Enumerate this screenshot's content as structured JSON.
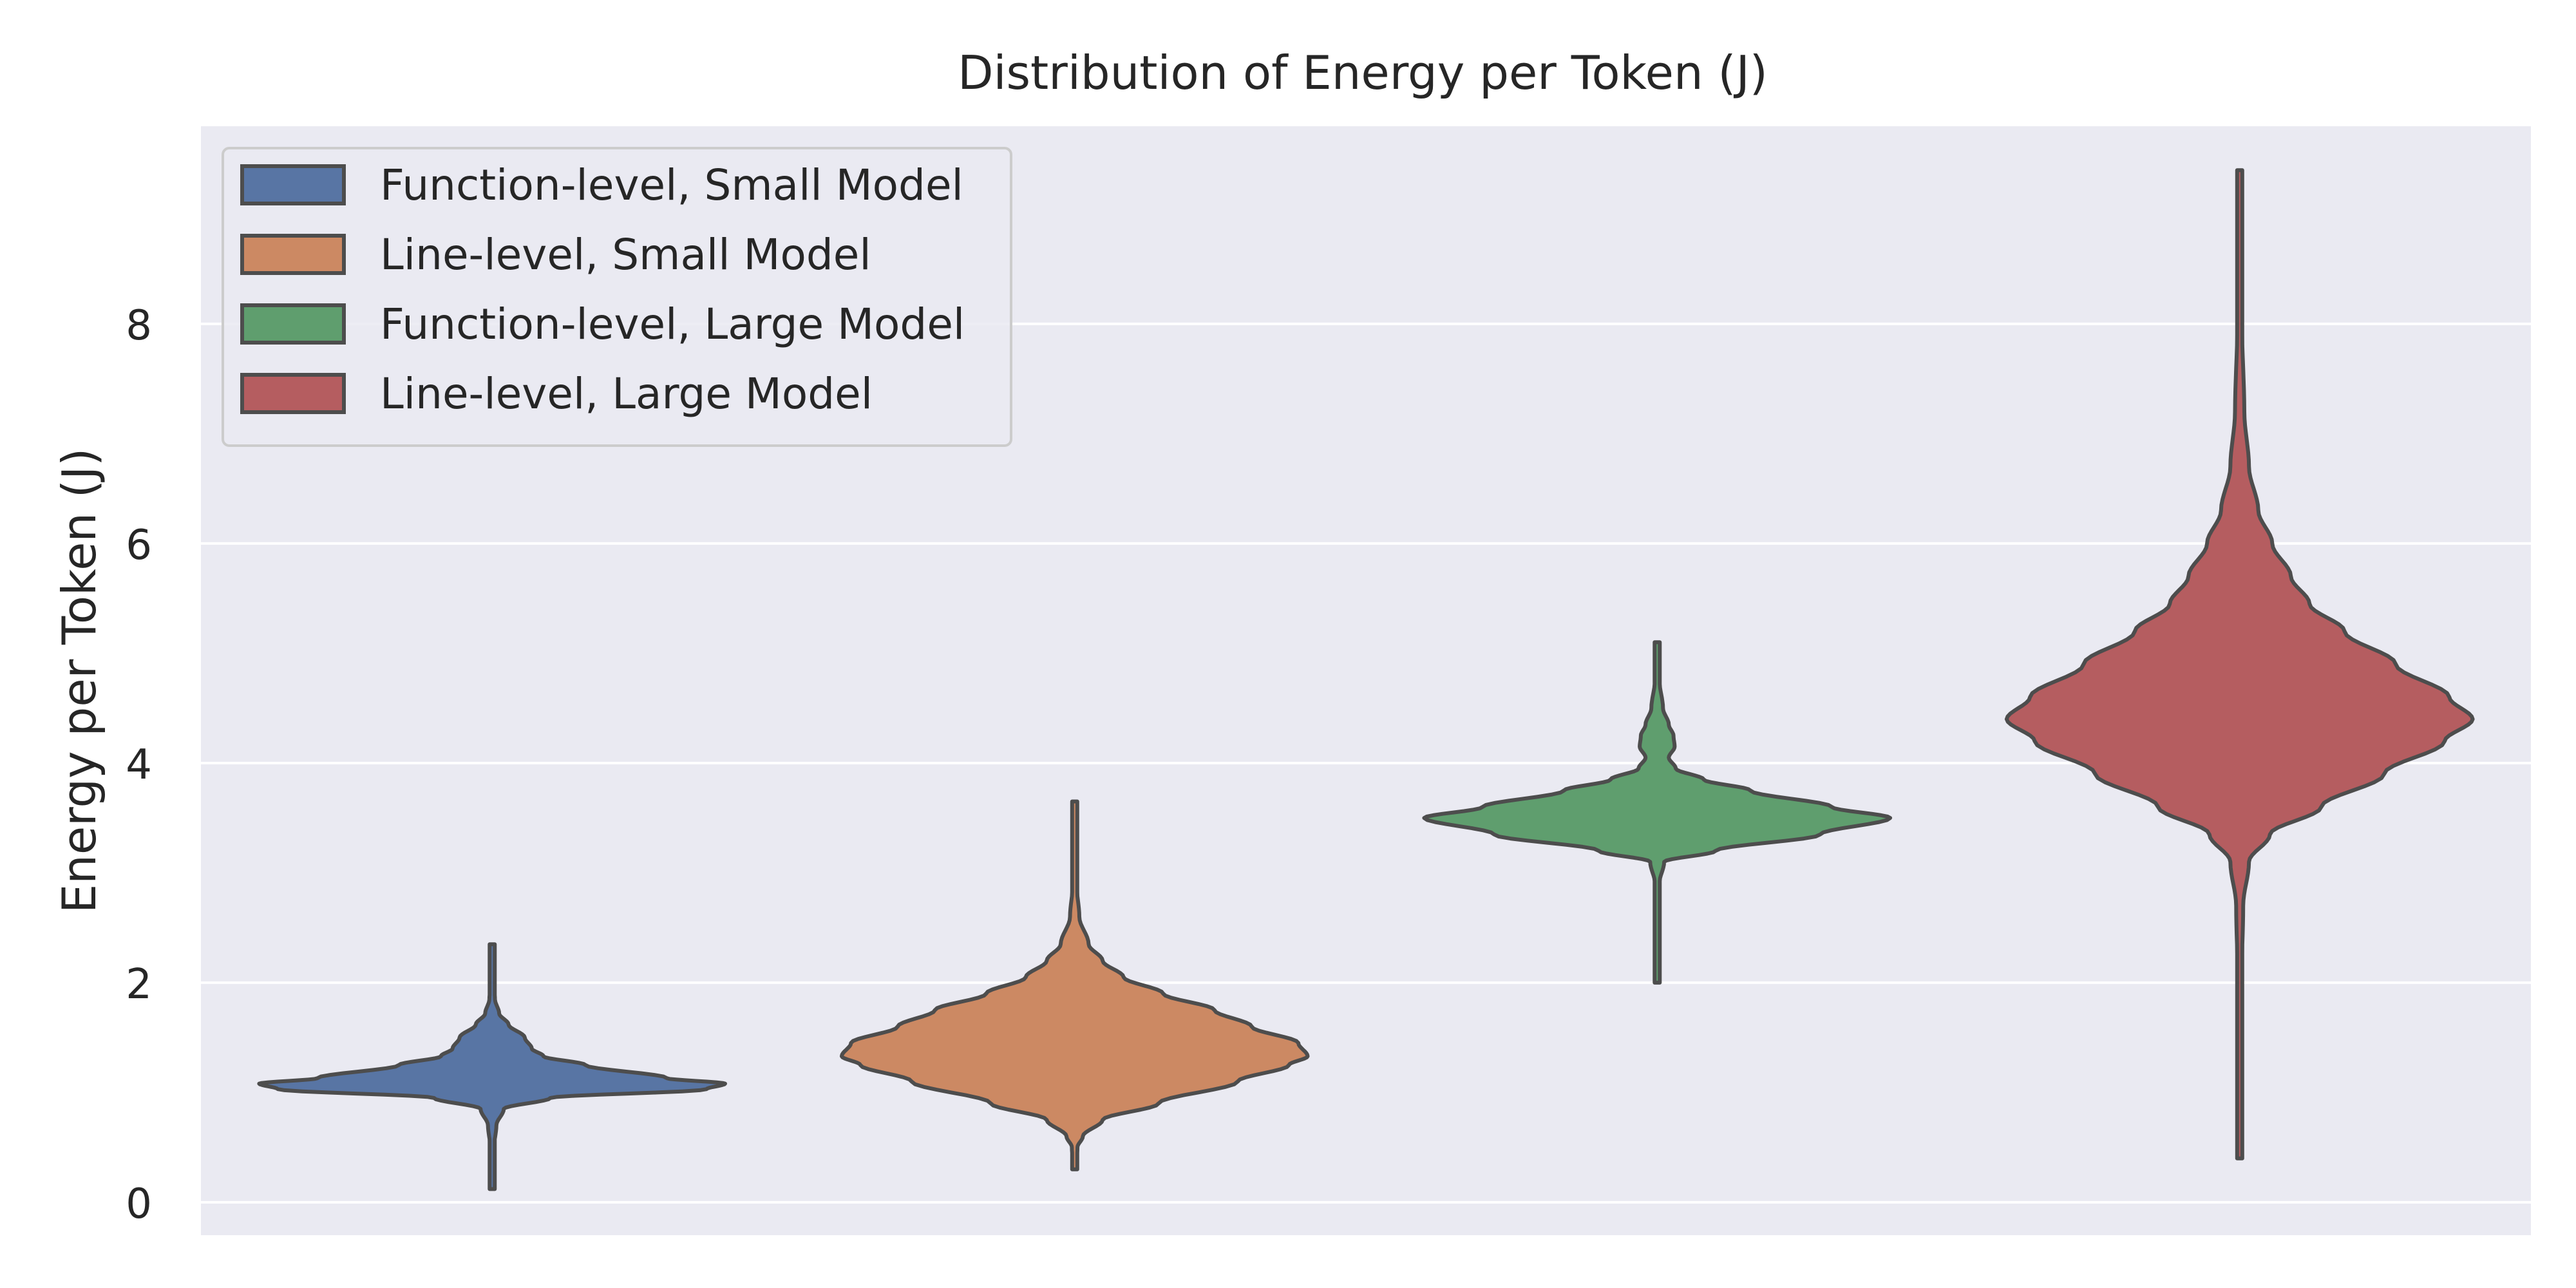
{
  "chart_data": {
    "type": "violin",
    "title": "Distribution of Energy per Token (J)",
    "xlabel": "",
    "ylabel": "Energy per Token (J)",
    "ylim": [
      -0.3,
      9.8
    ],
    "yticks": [
      0,
      2,
      4,
      6,
      8
    ],
    "grid": true,
    "legend_placement": "top-left",
    "background": "#eaeaf2",
    "outline_color": "#4d4d4d",
    "series": [
      {
        "name": "Function-level, Small Model",
        "color": "#5875a4",
        "range": [
          0.12,
          2.35
        ],
        "profile": [
          [
            0.12,
            0.003
          ],
          [
            0.3,
            0.006
          ],
          [
            0.5,
            0.008
          ],
          [
            0.7,
            0.018
          ],
          [
            0.85,
            0.05
          ],
          [
            0.95,
            0.25
          ],
          [
            1.03,
            0.92
          ],
          [
            1.08,
            1.0
          ],
          [
            1.13,
            0.75
          ],
          [
            1.25,
            0.4
          ],
          [
            1.33,
            0.22
          ],
          [
            1.4,
            0.17
          ],
          [
            1.5,
            0.14
          ],
          [
            1.62,
            0.07
          ],
          [
            1.72,
            0.03
          ],
          [
            1.85,
            0.012
          ],
          [
            2.0,
            0.004
          ],
          [
            2.35,
            0.002
          ]
        ]
      },
      {
        "name": "Line-level, Small Model",
        "color": "#cc8963",
        "range": [
          0.3,
          3.65
        ],
        "profile": [
          [
            0.3,
            0.004
          ],
          [
            0.5,
            0.012
          ],
          [
            0.6,
            0.035
          ],
          [
            0.75,
            0.12
          ],
          [
            0.9,
            0.36
          ],
          [
            1.1,
            0.7
          ],
          [
            1.25,
            0.92
          ],
          [
            1.33,
            1.0
          ],
          [
            1.45,
            0.96
          ],
          [
            1.6,
            0.76
          ],
          [
            1.75,
            0.6
          ],
          [
            1.9,
            0.38
          ],
          [
            2.05,
            0.21
          ],
          [
            2.2,
            0.12
          ],
          [
            2.35,
            0.06
          ],
          [
            2.6,
            0.02
          ],
          [
            2.9,
            0.008
          ],
          [
            3.2,
            0.005
          ],
          [
            3.65,
            0.003
          ]
        ]
      },
      {
        "name": "Function-level, Large Model",
        "color": "#5f9e6e",
        "range": [
          2.0,
          5.1
        ],
        "profile": [
          [
            2.0,
            0.003
          ],
          [
            2.5,
            0.005
          ],
          [
            2.9,
            0.009
          ],
          [
            3.1,
            0.03
          ],
          [
            3.2,
            0.25
          ],
          [
            3.35,
            0.7
          ],
          [
            3.5,
            1.0
          ],
          [
            3.6,
            0.75
          ],
          [
            3.75,
            0.4
          ],
          [
            3.85,
            0.2
          ],
          [
            3.95,
            0.08
          ],
          [
            4.05,
            0.05
          ],
          [
            4.15,
            0.075
          ],
          [
            4.25,
            0.07
          ],
          [
            4.35,
            0.05
          ],
          [
            4.5,
            0.025
          ],
          [
            4.75,
            0.01
          ],
          [
            5.1,
            0.003
          ]
        ]
      },
      {
        "name": "Line-level, Large Model",
        "color": "#b55d60",
        "range": [
          0.4,
          9.4
        ],
        "profile": [
          [
            0.4,
            0.003
          ],
          [
            1.0,
            0.005
          ],
          [
            2.0,
            0.008
          ],
          [
            2.7,
            0.015
          ],
          [
            3.1,
            0.04
          ],
          [
            3.35,
            0.13
          ],
          [
            3.6,
            0.35
          ],
          [
            3.9,
            0.62
          ],
          [
            4.2,
            0.88
          ],
          [
            4.4,
            1.0
          ],
          [
            4.6,
            0.9
          ],
          [
            4.9,
            0.67
          ],
          [
            5.2,
            0.45
          ],
          [
            5.45,
            0.3
          ],
          [
            5.7,
            0.22
          ],
          [
            6.0,
            0.14
          ],
          [
            6.3,
            0.08
          ],
          [
            6.7,
            0.04
          ],
          [
            7.2,
            0.02
          ],
          [
            8.0,
            0.01
          ],
          [
            9.0,
            0.006
          ],
          [
            9.4,
            0.003
          ]
        ]
      }
    ]
  }
}
